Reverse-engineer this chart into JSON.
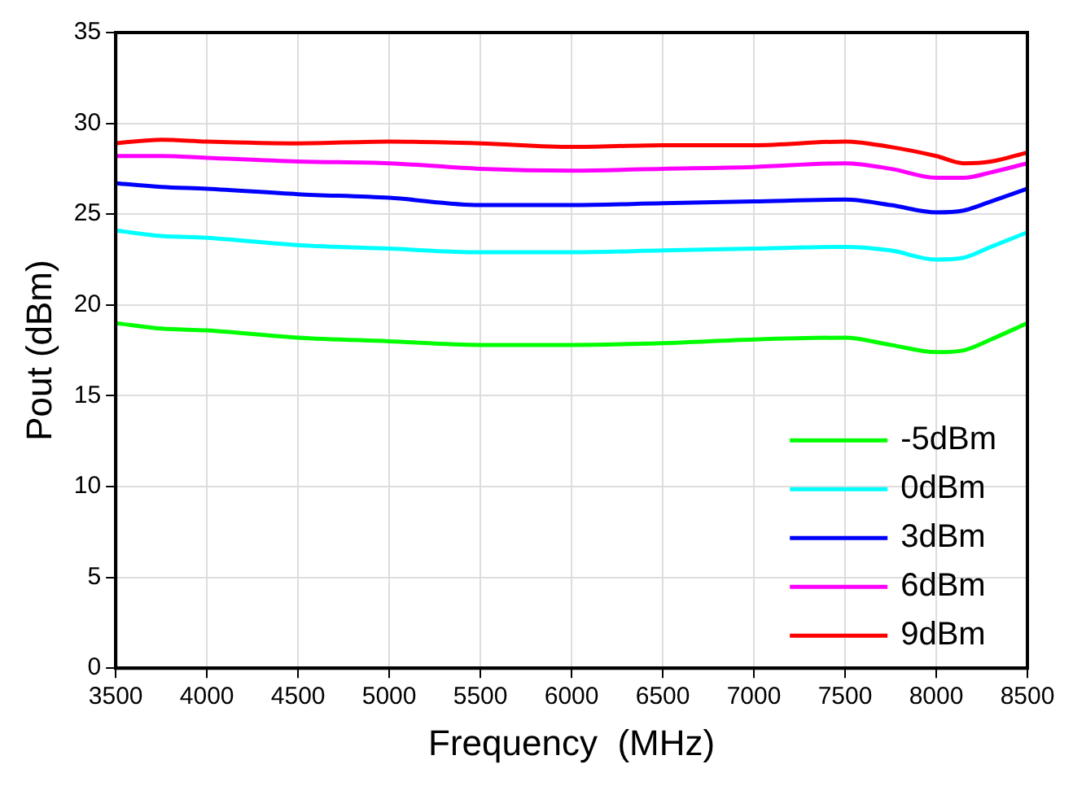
{
  "chart_data": {
    "type": "line",
    "xlabel": "Frequency  (MHz)",
    "ylabel": "Pout (dBm)",
    "x": [
      3500,
      3750,
      4000,
      4500,
      5000,
      5500,
      6000,
      6500,
      7000,
      7500,
      7750,
      8000,
      8150,
      8300,
      8500
    ],
    "series": [
      {
        "name": "-5dBm",
        "color": "#00ff00",
        "values": [
          19.0,
          18.7,
          18.6,
          18.2,
          18.0,
          17.8,
          17.8,
          17.9,
          18.1,
          18.2,
          17.8,
          17.4,
          17.5,
          18.1,
          19.0
        ]
      },
      {
        "name": "0dBm",
        "color": "#00ffff",
        "values": [
          24.1,
          23.8,
          23.7,
          23.3,
          23.1,
          22.9,
          22.9,
          23.0,
          23.1,
          23.2,
          23.0,
          22.5,
          22.6,
          23.2,
          24.0
        ]
      },
      {
        "name": "3dBm",
        "color": "#0000ff",
        "values": [
          26.7,
          26.5,
          26.4,
          26.1,
          25.9,
          25.5,
          25.5,
          25.6,
          25.7,
          25.8,
          25.5,
          25.1,
          25.2,
          25.7,
          26.4
        ]
      },
      {
        "name": "6dBm",
        "color": "#ff00ff",
        "values": [
          28.2,
          28.2,
          28.1,
          27.9,
          27.8,
          27.5,
          27.4,
          27.5,
          27.6,
          27.8,
          27.5,
          27.0,
          27.0,
          27.3,
          27.8
        ]
      },
      {
        "name": "9dBm",
        "color": "#ff0000",
        "values": [
          28.9,
          29.1,
          29.0,
          28.9,
          29.0,
          28.9,
          28.7,
          28.8,
          28.8,
          29.0,
          28.7,
          28.2,
          27.8,
          27.9,
          28.4
        ]
      }
    ],
    "xlim": [
      3500,
      8500
    ],
    "xticks": [
      3500,
      4000,
      4500,
      5000,
      5500,
      6000,
      6500,
      7000,
      7500,
      8000,
      8500
    ],
    "ylim": [
      0,
      35
    ],
    "yticks": [
      0,
      5,
      10,
      15,
      20,
      25,
      30,
      35
    ],
    "grid": true,
    "legend": "bottom right",
    "marker": "none",
    "line_style": "solid"
  }
}
